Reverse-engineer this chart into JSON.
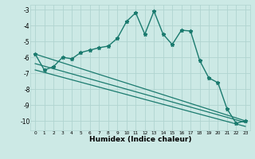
{
  "xlabel": "Humidex (Indice chaleur)",
  "background_color": "#cce9e5",
  "grid_color": "#b0d4d0",
  "line_color": "#1a7a6e",
  "xlim": [
    -0.5,
    23.5
  ],
  "ylim": [
    -10.6,
    -2.7
  ],
  "yticks": [
    -10,
    -9,
    -8,
    -7,
    -6,
    -5,
    -4,
    -3
  ],
  "xticks": [
    0,
    1,
    2,
    3,
    4,
    5,
    6,
    7,
    8,
    9,
    10,
    11,
    12,
    13,
    14,
    15,
    16,
    17,
    18,
    19,
    20,
    21,
    22,
    23
  ],
  "series": [
    {
      "x": [
        0,
        1,
        2,
        3,
        4,
        5,
        6,
        7,
        8,
        9,
        10,
        11,
        12,
        13,
        14,
        15,
        16,
        17,
        18,
        19,
        20,
        21,
        22,
        23
      ],
      "y": [
        -5.8,
        -6.8,
        -6.6,
        -6.0,
        -6.1,
        -5.7,
        -5.55,
        -5.4,
        -5.3,
        -4.8,
        -3.75,
        -3.2,
        -4.55,
        -3.1,
        -4.55,
        -5.2,
        -4.3,
        -4.35,
        -6.2,
        -7.3,
        -7.6,
        -9.25,
        -10.15,
        -10.0
      ],
      "marker": true,
      "linewidth": 1.0
    },
    {
      "x": [
        0,
        23
      ],
      "y": [
        -5.8,
        -10.0
      ],
      "marker": false,
      "linewidth": 0.9
    },
    {
      "x": [
        0,
        23
      ],
      "y": [
        -6.4,
        -10.1
      ],
      "marker": false,
      "linewidth": 0.9
    },
    {
      "x": [
        0,
        23
      ],
      "y": [
        -6.8,
        -10.35
      ],
      "marker": false,
      "linewidth": 0.9
    }
  ]
}
